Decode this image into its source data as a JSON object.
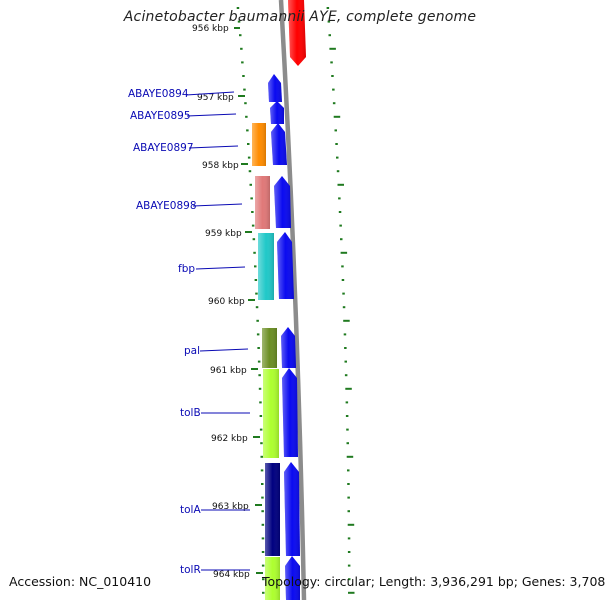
{
  "title": "Acinetobacter baumannii AYE, complete genome",
  "accession": "Accession: NC_010410",
  "topology": "Topology: circular; Length: 3,936,291 bp; Genes: 3,708",
  "colors": {
    "backbone": "#8c8c8c",
    "tick": "#1f7a1f",
    "label": "#0a0ab4",
    "forward_gene": "#0a0af0"
  },
  "ticks": [
    {
      "label": "956 kbp"
    },
    {
      "label": "957 kbp"
    },
    {
      "label": "958 kbp"
    },
    {
      "label": "959 kbp"
    },
    {
      "label": "960 kbp"
    },
    {
      "label": "961 kbp"
    },
    {
      "label": "962 kbp"
    },
    {
      "label": "963 kbp"
    },
    {
      "label": "964 kbp"
    }
  ],
  "gene_labels": [
    {
      "name": "ABAYE0894"
    },
    {
      "name": "ABAYE0895"
    },
    {
      "name": "ABAYE0897"
    },
    {
      "name": "ABAYE0898"
    },
    {
      "name": "fbp"
    },
    {
      "name": "pal"
    },
    {
      "name": "tolB"
    },
    {
      "name": "tolA"
    },
    {
      "name": "tolR"
    }
  ],
  "gene_colors": {
    "ABAYE0897": "#ff8c00",
    "ABAYE0898": "#e07878",
    "fbp": "#20c8c8",
    "pal": "#6b8e23",
    "tolB": "#adff2f",
    "tolA": "#000080",
    "tolR": "#adff2f",
    "reverse_top": "#ff0000"
  }
}
